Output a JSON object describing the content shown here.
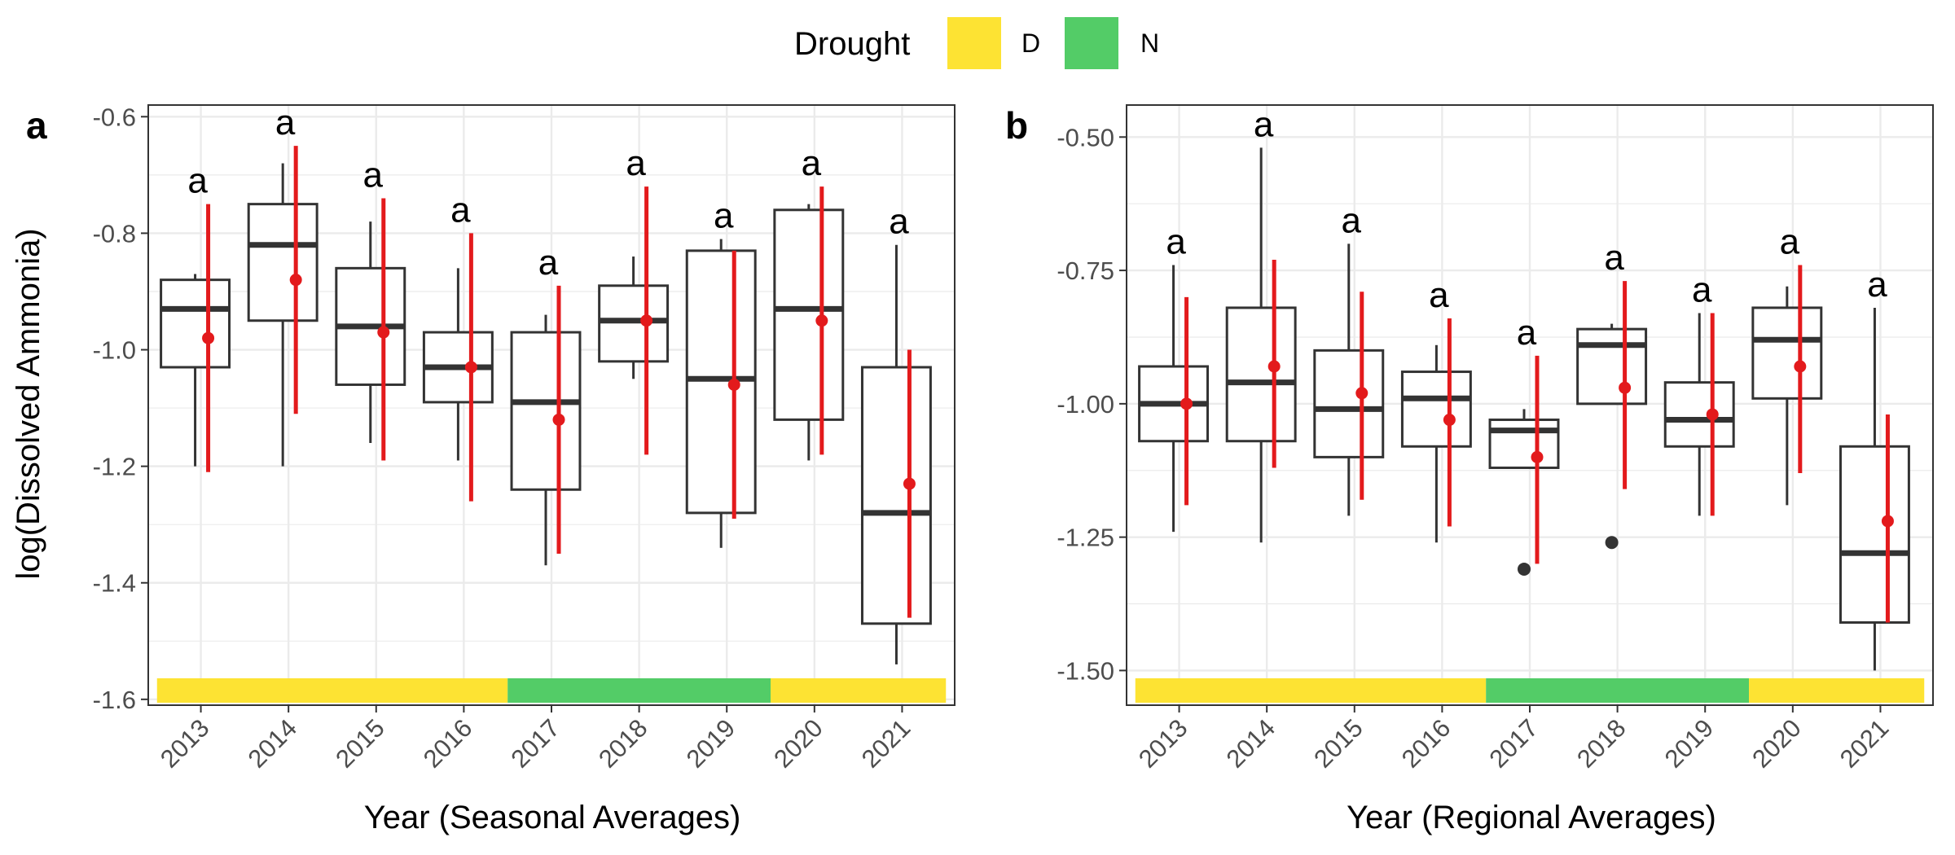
{
  "legend": {
    "title": "Drought",
    "items": [
      {
        "label": "D",
        "color": "#FDE333"
      },
      {
        "label": "N",
        "color": "#53CC67"
      }
    ]
  },
  "colors": {
    "mean_ci": "#E31A1C",
    "box": "#333333",
    "grid": "#EBEBEB",
    "panel_border": "#333333"
  },
  "chart_data": [
    {
      "type": "boxplot",
      "panel_tag": "a",
      "xlabel": "Year (Seasonal Averages)",
      "ylabel": "log(Dissolved Ammonia)",
      "categories": [
        "2013",
        "2014",
        "2015",
        "2016",
        "2017",
        "2018",
        "2019",
        "2020",
        "2021"
      ],
      "ylim": [
        -1.61,
        -0.58
      ],
      "yticks": [
        -0.6,
        -0.8,
        -1.0,
        -1.2,
        -1.4,
        -1.6
      ],
      "ytick_labels": [
        "-0.6",
        "-0.8",
        "-1.0",
        "-1.2",
        "-1.4",
        "-1.6"
      ],
      "grid": true,
      "boxes": [
        {
          "min": -1.2,
          "q1": -1.03,
          "median": -0.93,
          "q3": -0.88,
          "max": -0.87
        },
        {
          "min": -1.2,
          "q1": -0.95,
          "median": -0.82,
          "q3": -0.75,
          "max": -0.68
        },
        {
          "min": -1.16,
          "q1": -1.06,
          "median": -0.96,
          "q3": -0.86,
          "max": -0.78
        },
        {
          "min": -1.19,
          "q1": -1.09,
          "median": -1.03,
          "q3": -0.97,
          "max": -0.86
        },
        {
          "min": -1.37,
          "q1": -1.24,
          "median": -1.09,
          "q3": -0.97,
          "max": -0.94
        },
        {
          "min": -1.05,
          "q1": -1.02,
          "median": -0.95,
          "q3": -0.89,
          "max": -0.84
        },
        {
          "min": -1.34,
          "q1": -1.28,
          "median": -1.05,
          "q3": -0.83,
          "max": -0.81
        },
        {
          "min": -1.19,
          "q1": -1.12,
          "median": -0.93,
          "q3": -0.76,
          "max": -0.75
        },
        {
          "min": -1.54,
          "q1": -1.47,
          "median": -1.28,
          "q3": -1.03,
          "max": -0.82
        }
      ],
      "outliers": [],
      "mean": [
        -0.98,
        -0.88,
        -0.97,
        -1.03,
        -1.12,
        -0.95,
        -1.06,
        -0.95,
        -1.23
      ],
      "ci_low": [
        -1.21,
        -1.11,
        -1.19,
        -1.26,
        -1.35,
        -1.18,
        -1.29,
        -1.18,
        -1.46
      ],
      "ci_high": [
        -0.75,
        -0.65,
        -0.74,
        -0.8,
        -0.89,
        -0.72,
        -0.83,
        -0.72,
        -1.0
      ],
      "letters": [
        "a",
        "a",
        "a",
        "a",
        "a",
        "a",
        "a",
        "a",
        "a"
      ],
      "drought": [
        "D",
        "D",
        "D",
        "D",
        "N",
        "N",
        "N",
        "D",
        "D"
      ]
    },
    {
      "type": "boxplot",
      "panel_tag": "b",
      "xlabel": "Year (Regional Averages)",
      "ylabel": "",
      "categories": [
        "2013",
        "2014",
        "2015",
        "2016",
        "2017",
        "2018",
        "2019",
        "2020",
        "2021"
      ],
      "ylim": [
        -1.565,
        -0.44
      ],
      "yticks": [
        -0.5,
        -0.75,
        -1.0,
        -1.25,
        -1.5
      ],
      "ytick_labels": [
        "-0.50",
        "-0.75",
        "-1.00",
        "-1.25",
        "-1.50"
      ],
      "grid": true,
      "boxes": [
        {
          "min": -1.24,
          "q1": -1.07,
          "median": -1.0,
          "q3": -0.93,
          "max": -0.74
        },
        {
          "min": -1.26,
          "q1": -1.07,
          "median": -0.96,
          "q3": -0.82,
          "max": -0.52
        },
        {
          "min": -1.21,
          "q1": -1.1,
          "median": -1.01,
          "q3": -0.9,
          "max": -0.7
        },
        {
          "min": -1.26,
          "q1": -1.08,
          "median": -0.99,
          "q3": -0.94,
          "max": -0.89
        },
        {
          "min": -1.12,
          "q1": -1.12,
          "median": -1.05,
          "q3": -1.03,
          "max": -1.01
        },
        {
          "min": -1.0,
          "q1": -1.0,
          "median": -0.89,
          "q3": -0.86,
          "max": -0.85
        },
        {
          "min": -1.21,
          "q1": -1.08,
          "median": -1.03,
          "q3": -0.96,
          "max": -0.83
        },
        {
          "min": -1.19,
          "q1": -0.99,
          "median": -0.88,
          "q3": -0.82,
          "max": -0.78
        },
        {
          "min": -1.5,
          "q1": -1.41,
          "median": -1.28,
          "q3": -1.08,
          "max": -0.82
        }
      ],
      "outliers": [
        {
          "index": 4,
          "value": -1.31
        },
        {
          "index": 5,
          "value": -1.26
        }
      ],
      "mean": [
        -1.0,
        -0.93,
        -0.98,
        -1.03,
        -1.1,
        -0.97,
        -1.02,
        -0.93,
        -1.22
      ],
      "ci_low": [
        -1.19,
        -1.12,
        -1.18,
        -1.23,
        -1.3,
        -1.16,
        -1.21,
        -1.13,
        -1.41
      ],
      "ci_high": [
        -0.8,
        -0.73,
        -0.79,
        -0.84,
        -0.91,
        -0.77,
        -0.83,
        -0.74,
        -1.02
      ],
      "letters": [
        "a",
        "a",
        "a",
        "a",
        "a",
        "a",
        "a",
        "a",
        "a"
      ],
      "drought": [
        "D",
        "D",
        "D",
        "D",
        "N",
        "N",
        "N",
        "D",
        "D"
      ]
    }
  ]
}
